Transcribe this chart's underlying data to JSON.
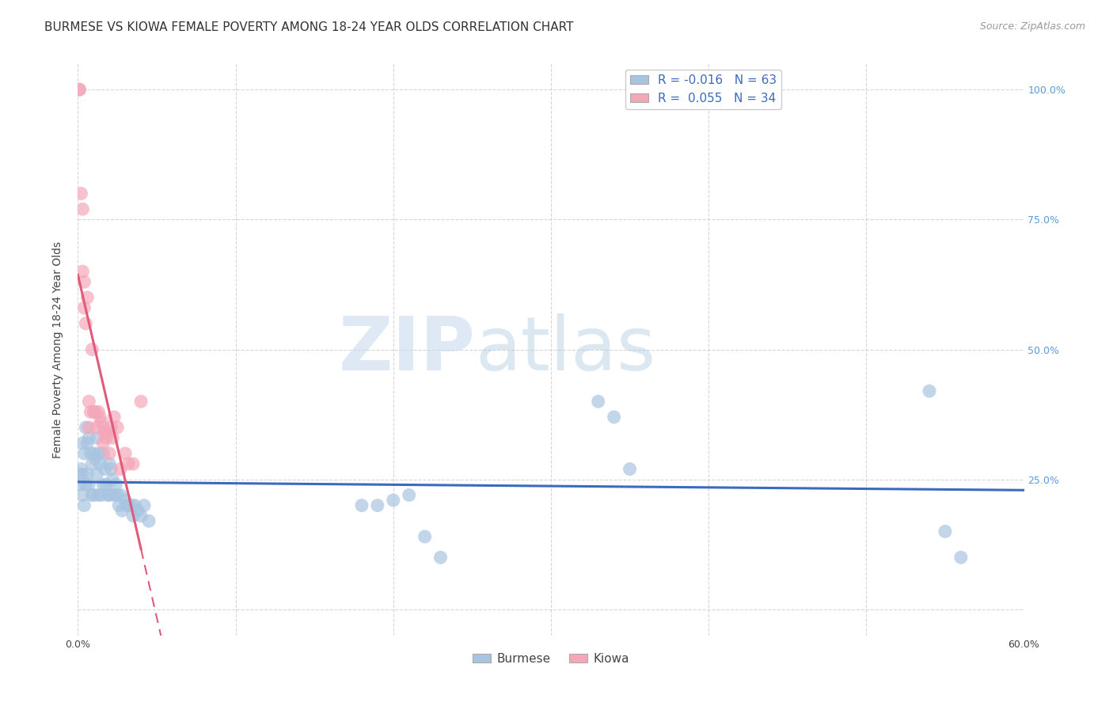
{
  "title": "BURMESE VS KIOWA FEMALE POVERTY AMONG 18-24 YEAR OLDS CORRELATION CHART",
  "source": "Source: ZipAtlas.com",
  "ylabel": "Female Poverty Among 18-24 Year Olds",
  "xlim": [
    0.0,
    0.6
  ],
  "ylim": [
    -0.05,
    1.05
  ],
  "xticks": [
    0.0,
    0.1,
    0.2,
    0.3,
    0.4,
    0.5,
    0.6
  ],
  "yticks": [
    0.0,
    0.25,
    0.5,
    0.75,
    1.0
  ],
  "xtick_labels": [
    "0.0%",
    "",
    "",
    "",
    "",
    "",
    "60.0%"
  ],
  "ytick_labels_right": [
    "",
    "25.0%",
    "50.0%",
    "75.0%",
    "100.0%"
  ],
  "burmese_color": "#a8c4e0",
  "kiowa_color": "#f4a7b9",
  "burmese_line_color": "#3a6bbf",
  "kiowa_line_color": "#e05a7a",
  "burmese_line_color_dark": "#3a6bbf",
  "R_burmese": -0.016,
  "N_burmese": 63,
  "R_kiowa": 0.055,
  "N_kiowa": 34,
  "burmese_x": [
    0.001,
    0.001,
    0.002,
    0.003,
    0.003,
    0.003,
    0.004,
    0.004,
    0.005,
    0.005,
    0.006,
    0.006,
    0.007,
    0.007,
    0.008,
    0.009,
    0.009,
    0.01,
    0.01,
    0.011,
    0.012,
    0.012,
    0.013,
    0.013,
    0.014,
    0.015,
    0.016,
    0.016,
    0.017,
    0.018,
    0.019,
    0.02,
    0.02,
    0.021,
    0.022,
    0.023,
    0.024,
    0.025,
    0.026,
    0.027,
    0.028,
    0.03,
    0.031,
    0.032,
    0.034,
    0.035,
    0.036,
    0.038,
    0.04,
    0.042,
    0.045,
    0.18,
    0.19,
    0.2,
    0.21,
    0.22,
    0.23,
    0.33,
    0.34,
    0.35,
    0.54,
    0.55,
    0.56
  ],
  "burmese_y": [
    0.26,
    0.24,
    0.27,
    0.32,
    0.26,
    0.22,
    0.3,
    0.2,
    0.35,
    0.24,
    0.32,
    0.26,
    0.33,
    0.24,
    0.3,
    0.28,
    0.22,
    0.3,
    0.22,
    0.29,
    0.33,
    0.26,
    0.3,
    0.22,
    0.28,
    0.22,
    0.3,
    0.24,
    0.27,
    0.24,
    0.22,
    0.28,
    0.22,
    0.27,
    0.25,
    0.22,
    0.24,
    0.22,
    0.2,
    0.22,
    0.19,
    0.21,
    0.2,
    0.2,
    0.2,
    0.18,
    0.2,
    0.19,
    0.18,
    0.2,
    0.17,
    0.2,
    0.2,
    0.21,
    0.22,
    0.14,
    0.1,
    0.4,
    0.37,
    0.27,
    0.42,
    0.15,
    0.1
  ],
  "kiowa_x": [
    0.001,
    0.001,
    0.002,
    0.003,
    0.003,
    0.004,
    0.004,
    0.005,
    0.006,
    0.007,
    0.007,
    0.008,
    0.009,
    0.01,
    0.011,
    0.012,
    0.013,
    0.014,
    0.015,
    0.016,
    0.016,
    0.017,
    0.018,
    0.019,
    0.02,
    0.021,
    0.022,
    0.023,
    0.025,
    0.027,
    0.03,
    0.032,
    0.035,
    0.04
  ],
  "kiowa_y": [
    1.0,
    1.0,
    0.8,
    0.77,
    0.65,
    0.63,
    0.58,
    0.55,
    0.6,
    0.4,
    0.35,
    0.38,
    0.5,
    0.38,
    0.38,
    0.35,
    0.38,
    0.37,
    0.36,
    0.35,
    0.32,
    0.34,
    0.33,
    0.34,
    0.3,
    0.35,
    0.33,
    0.37,
    0.35,
    0.27,
    0.3,
    0.28,
    0.28,
    0.4
  ],
  "watermark_zip": "ZIP",
  "watermark_atlas": "atlas",
  "background_color": "#ffffff",
  "grid_color": "#cccccc",
  "title_fontsize": 11,
  "axis_label_fontsize": 10,
  "tick_fontsize": 9,
  "legend_fontsize": 11,
  "right_tick_color": "#5b9bd5"
}
